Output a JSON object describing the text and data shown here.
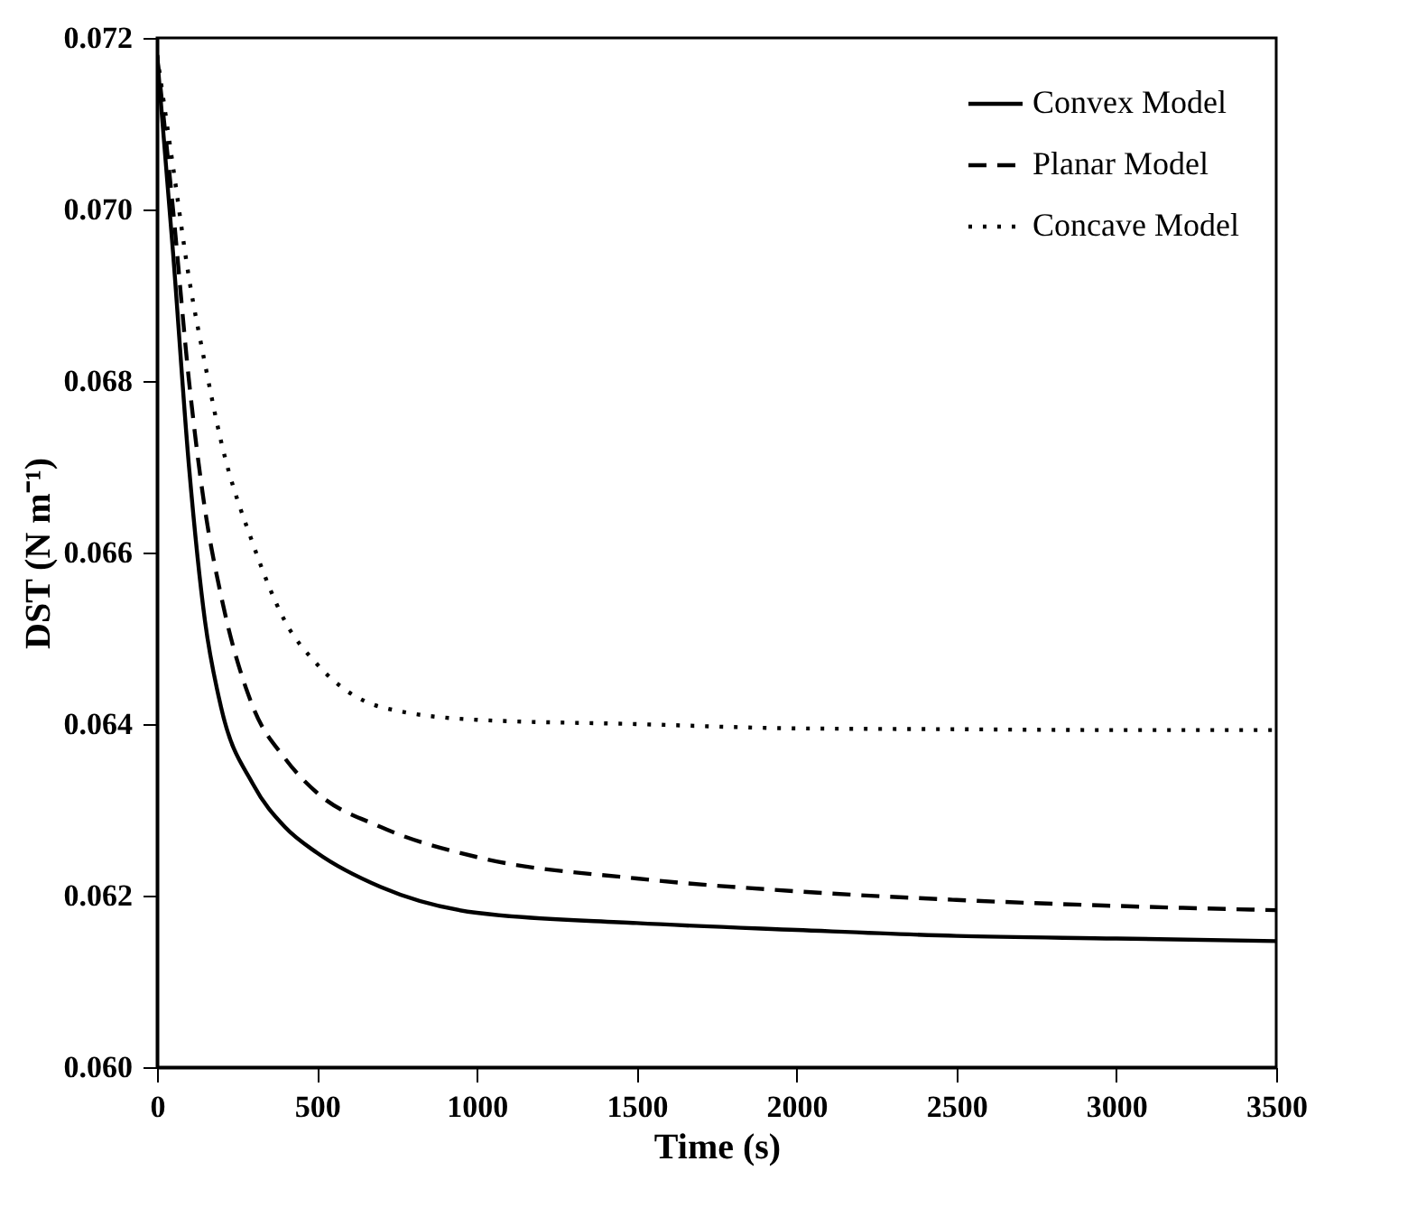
{
  "chart_data": {
    "type": "line",
    "xlabel": "Time (s)",
    "ylabel": "DST (N m⁻¹)",
    "x": [
      0,
      50,
      100,
      150,
      200,
      300,
      400,
      500,
      700,
      1000,
      1500,
      2000,
      2500,
      3000,
      3500
    ],
    "series": [
      {
        "name": "Convex Model",
        "color": "#000000",
        "line_style": "solid",
        "values": [
          0.0718,
          0.0695,
          0.067,
          0.0652,
          0.0642,
          0.0633,
          0.0628,
          0.0625,
          0.0621,
          0.0618,
          0.06168,
          0.0616,
          0.06153,
          0.0615,
          0.06147
        ]
      },
      {
        "name": "Planar Model",
        "color": "#000000",
        "line_style": "dashed",
        "values": [
          0.0718,
          0.07,
          0.068,
          0.0665,
          0.0655,
          0.0642,
          0.0636,
          0.0632,
          0.0628,
          0.06245,
          0.0622,
          0.06205,
          0.06195,
          0.06188,
          0.06183
        ]
      },
      {
        "name": "Concave Model",
        "color": "#000000",
        "line_style": "dotted",
        "values": [
          0.0718,
          0.0705,
          0.0692,
          0.0682,
          0.0673,
          0.0661,
          0.0652,
          0.0647,
          0.0642,
          0.06405,
          0.064,
          0.06395,
          0.06394,
          0.06393,
          0.06393
        ]
      }
    ],
    "xlim": [
      0,
      3500
    ],
    "xticks": [
      0,
      500,
      1000,
      1500,
      2000,
      2500,
      3000,
      3500
    ],
    "ylim": [
      0.06,
      0.072
    ],
    "yticks": [
      {
        "value": 0.06,
        "label": "0.060"
      },
      {
        "value": 0.062,
        "label": "0.062"
      },
      {
        "value": 0.064,
        "label": "0.064"
      },
      {
        "value": 0.066,
        "label": "0.066"
      },
      {
        "value": 0.068,
        "label": "0.068"
      },
      {
        "value": 0.07,
        "label": "0.070"
      },
      {
        "value": 0.072,
        "label": "0.072"
      }
    ],
    "grid": false,
    "legend": "top right",
    "marker": "none"
  }
}
